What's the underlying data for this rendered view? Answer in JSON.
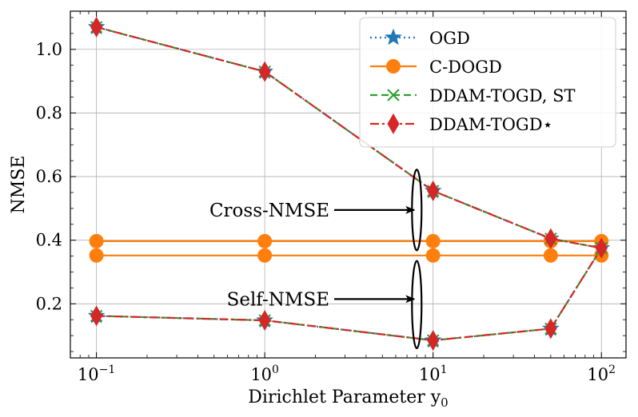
{
  "chart_data": {
    "type": "line",
    "title": "",
    "xlabel": "Dirichlet Parameter y",
    "xlabel_subscript": "0",
    "ylabel": "NMSE",
    "xscale": "log",
    "xlim": [
      0.07,
      140
    ],
    "ylim": [
      0.03,
      1.12
    ],
    "grid": true,
    "legend_position": "top-right",
    "x": [
      0.1,
      1,
      10,
      50,
      100
    ],
    "xticks": [
      {
        "value": 0.1,
        "base": "10",
        "exp": "−1"
      },
      {
        "value": 1,
        "base": "10",
        "exp": "0"
      },
      {
        "value": 10,
        "base": "10",
        "exp": "1"
      },
      {
        "value": 100,
        "base": "10",
        "exp": "2"
      }
    ],
    "yticks": [
      {
        "value": 0.2,
        "label": "0.2"
      },
      {
        "value": 0.4,
        "label": "0.4"
      },
      {
        "value": 0.6,
        "label": "0.6"
      },
      {
        "value": 0.8,
        "label": "0.8"
      },
      {
        "value": 1.0,
        "label": "1.0"
      }
    ],
    "series": [
      {
        "name": "OGD",
        "label": "OGD",
        "color": "#1f77b4",
        "marker": "star",
        "linestyle": "dotted",
        "group": "cross",
        "values": [
          1.07,
          0.93,
          0.555,
          0.405,
          0.375
        ]
      },
      {
        "name": "OGD",
        "label": "OGD",
        "color": "#1f77b4",
        "marker": "star",
        "linestyle": "dotted",
        "group": "self",
        "values": [
          0.162,
          0.148,
          0.085,
          0.122,
          0.375
        ]
      },
      {
        "name": "C-DOGD",
        "label": "C-DOGD",
        "color": "#ff7f0e",
        "marker": "circle",
        "linestyle": "solid",
        "group": "cross",
        "values": [
          0.397,
          0.397,
          0.397,
          0.397,
          0.397
        ]
      },
      {
        "name": "C-DOGD",
        "label": "C-DOGD",
        "color": "#ff7f0e",
        "marker": "circle",
        "linestyle": "solid",
        "group": "self",
        "values": [
          0.352,
          0.352,
          0.352,
          0.352,
          0.352
        ]
      },
      {
        "name": "DDAM-TOGD, ST",
        "label": "DDAM-TOGD, ST",
        "color": "#2ca02c",
        "marker": "x",
        "linestyle": "dashed",
        "group": "cross",
        "values": [
          1.07,
          0.93,
          0.555,
          0.405,
          0.375
        ]
      },
      {
        "name": "DDAM-TOGD, ST",
        "label": "DDAM-TOGD, ST",
        "color": "#2ca02c",
        "marker": "x",
        "linestyle": "dashed",
        "group": "self",
        "values": [
          0.162,
          0.148,
          0.085,
          0.122,
          0.375
        ]
      },
      {
        "name": "DDAM-TOGD*",
        "label": "DDAM-TOGD⋆",
        "color": "#d62728",
        "marker": "diamond",
        "linestyle": "dashdot",
        "group": "cross",
        "values": [
          1.07,
          0.93,
          0.555,
          0.405,
          0.375
        ]
      },
      {
        "name": "DDAM-TOGD*",
        "label": "DDAM-TOGD⋆",
        "color": "#d62728",
        "marker": "diamond",
        "linestyle": "dashdot",
        "group": "self",
        "values": [
          0.162,
          0.148,
          0.085,
          0.122,
          0.375
        ]
      }
    ],
    "legend": [
      {
        "label": "OGD",
        "color": "#1f77b4",
        "marker": "star",
        "linestyle": "dotted"
      },
      {
        "label": "C-DOGD",
        "color": "#ff7f0e",
        "marker": "circle",
        "linestyle": "solid"
      },
      {
        "label": "DDAM-TOGD, ST",
        "color": "#2ca02c",
        "marker": "x",
        "linestyle": "dashed"
      },
      {
        "label": "DDAM-TOGD⋆",
        "color": "#d62728",
        "marker": "diamond",
        "linestyle": "dashdot"
      }
    ],
    "annotations": [
      {
        "text": "Cross-NMSE",
        "ellipse_x": 8,
        "ellipse_y": [
          0.368,
          0.622
        ],
        "arrow_y": 0.495
      },
      {
        "text": "Self-NMSE",
        "ellipse_x": 8,
        "ellipse_y": [
          0.06,
          0.335
        ],
        "arrow_y": 0.215
      }
    ]
  }
}
